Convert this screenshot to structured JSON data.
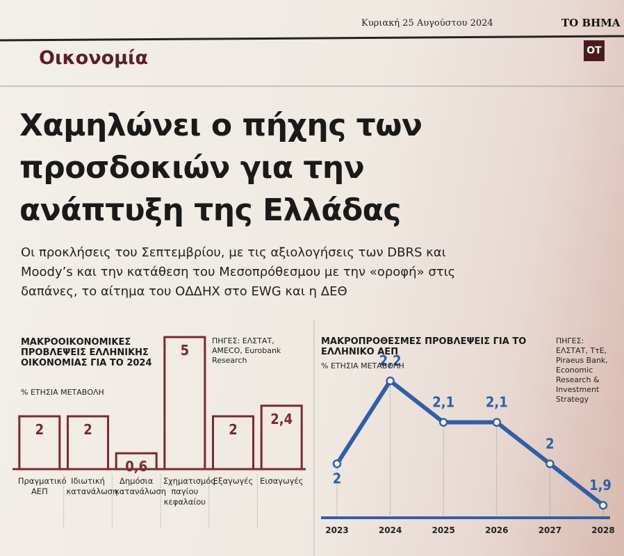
{
  "header": {
    "date": "Κυριακή 25 Αυγούστου 2024",
    "paper": "ΤΟ ΒΗΜΑ",
    "section": "Οικονομία",
    "badge": "ΟΤ"
  },
  "headline": "Χαμηλώνει ο πήχης των προσδοκιών για την ανάπτυξη της Ελλάδας",
  "subheadline": "Οι προκλήσεις του Σεπτεμβρίου, με τις αξιολογήσεις των DBRS και Moody’s και την κατάθεση του Μεσοπρόθεσμου με την «οροφή» στις δαπάνες, το αίτημα του ΟΔΔΗΧ στο EWG και η ΔΕΘ",
  "chart_data": [
    {
      "type": "bar",
      "title": "ΜΑΚΡΟΟΙΚΟΝΟΜΙΚΕΣ ΠΡΟΒΛΕΨΕΙΣ ΕΛΛΗΝΙΚΗΣ ΟΙΚΟΝΟΜΙΑΣ ΓΙΑ ΤΟ 2024",
      "subtitle": "% ΕΤΗΣΙΑ ΜΕΤΑΒΟΛΗ",
      "source": "ΠΗΓΕΣ: ΕΛΣΤΑΤ, AMECO, Eurobank Research",
      "categories": [
        "Πραγματικό ΑΕΠ",
        "Ιδιωτική κατανάλωση",
        "Δημόσια κατανάλωση",
        "Σχηματισμός παγίου κεφαλαίου",
        "Εξαγωγές",
        "Εισαγωγές"
      ],
      "values": [
        2,
        2,
        0.6,
        5,
        2,
        2.4
      ],
      "value_labels": [
        "2",
        "2",
        "0,6",
        "5",
        "2",
        "2,4"
      ],
      "color": "#7a2a32"
    },
    {
      "type": "line",
      "title": "ΜΑΚΡΟΠΡΟΘΕΣΜΕΣ ΠΡΟΒΛΕΨΕΙΣ ΓΙΑ ΤΟ ΕΛΛΗΝΙΚΟ ΑΕΠ",
      "subtitle": "% ΕΤΗΣΙΑ ΜΕΤΑΒΟΛΗ",
      "source": "ΠΗΓΕΣ: ΕΛΣΤΑΤ, ΤτΕ, Piraeus Bank, Economic Research & Investment Strategy",
      "categories": [
        "2023",
        "2024",
        "2025",
        "2026",
        "2027",
        "2028"
      ],
      "values": [
        2,
        2.2,
        2.1,
        2.1,
        2,
        1.9
      ],
      "value_labels": [
        "2",
        "2,2",
        "2,1",
        "2,1",
        "2",
        "1,9"
      ],
      "color": "#2f5fa8"
    }
  ]
}
